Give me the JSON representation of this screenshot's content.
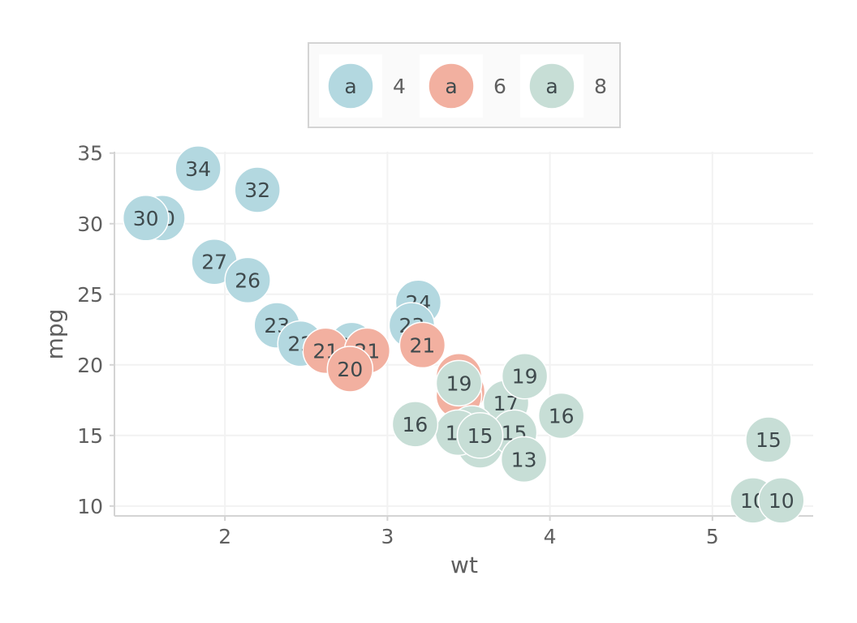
{
  "chart_data": {
    "type": "scatter",
    "title": "",
    "xlabel": "wt",
    "ylabel": "mpg",
    "xlim": [
      1.32,
      5.62
    ],
    "ylim": [
      9.3,
      35.1
    ],
    "xticks": [
      2,
      3,
      4,
      5
    ],
    "yticks": [
      10,
      15,
      20,
      25,
      30,
      35
    ],
    "grid": true,
    "legend": {
      "position": "top",
      "key_glyph": "a",
      "entries": [
        {
          "label": "4",
          "color": "#b3d8e0"
        },
        {
          "label": "6",
          "color": "#f2b0a0"
        },
        {
          "label": "8",
          "color": "#c7ded6"
        }
      ]
    },
    "series": [
      {
        "name": "4",
        "color": "#b3d8e0",
        "points": [
          {
            "x": 2.32,
            "y": 22.8,
            "label": "23"
          },
          {
            "x": 3.19,
            "y": 24.4,
            "label": "24"
          },
          {
            "x": 3.15,
            "y": 22.8,
            "label": "23"
          },
          {
            "x": 2.2,
            "y": 32.4,
            "label": "32"
          },
          {
            "x": 1.615,
            "y": 30.4,
            "label": "30"
          },
          {
            "x": 1.835,
            "y": 33.9,
            "label": "34"
          },
          {
            "x": 2.465,
            "y": 21.5,
            "label": "22"
          },
          {
            "x": 1.935,
            "y": 27.3,
            "label": "27"
          },
          {
            "x": 2.14,
            "y": 26.0,
            "label": "26"
          },
          {
            "x": 1.513,
            "y": 30.4,
            "label": "30"
          },
          {
            "x": 2.78,
            "y": 21.4,
            "label": "21"
          }
        ]
      },
      {
        "name": "6",
        "color": "#f2b0a0",
        "points": [
          {
            "x": 2.62,
            "y": 21.0,
            "label": "21"
          },
          {
            "x": 2.875,
            "y": 21.0,
            "label": "21"
          },
          {
            "x": 3.215,
            "y": 21.4,
            "label": "21"
          },
          {
            "x": 3.46,
            "y": 18.1,
            "label": "18"
          },
          {
            "x": 3.44,
            "y": 19.2,
            "label": "19"
          },
          {
            "x": 3.44,
            "y": 17.8,
            "label": "18"
          },
          {
            "x": 2.77,
            "y": 19.7,
            "label": "20"
          }
        ]
      },
      {
        "name": "8",
        "color": "#c7ded6",
        "points": [
          {
            "x": 3.44,
            "y": 18.7,
            "label": "19"
          },
          {
            "x": 3.57,
            "y": 14.3,
            "label": "14"
          },
          {
            "x": 4.07,
            "y": 16.4,
            "label": "16"
          },
          {
            "x": 3.73,
            "y": 17.3,
            "label": "17"
          },
          {
            "x": 3.78,
            "y": 15.2,
            "label": "15"
          },
          {
            "x": 5.25,
            "y": 10.4,
            "label": "10"
          },
          {
            "x": 5.424,
            "y": 10.4,
            "label": "10"
          },
          {
            "x": 5.345,
            "y": 14.7,
            "label": "15"
          },
          {
            "x": 3.52,
            "y": 15.5,
            "label": "16"
          },
          {
            "x": 3.435,
            "y": 15.2,
            "label": "15"
          },
          {
            "x": 3.84,
            "y": 13.3,
            "label": "13"
          },
          {
            "x": 3.845,
            "y": 19.2,
            "label": "19"
          },
          {
            "x": 3.17,
            "y": 15.8,
            "label": "16"
          },
          {
            "x": 3.57,
            "y": 15.0,
            "label": "15"
          }
        ]
      }
    ]
  }
}
